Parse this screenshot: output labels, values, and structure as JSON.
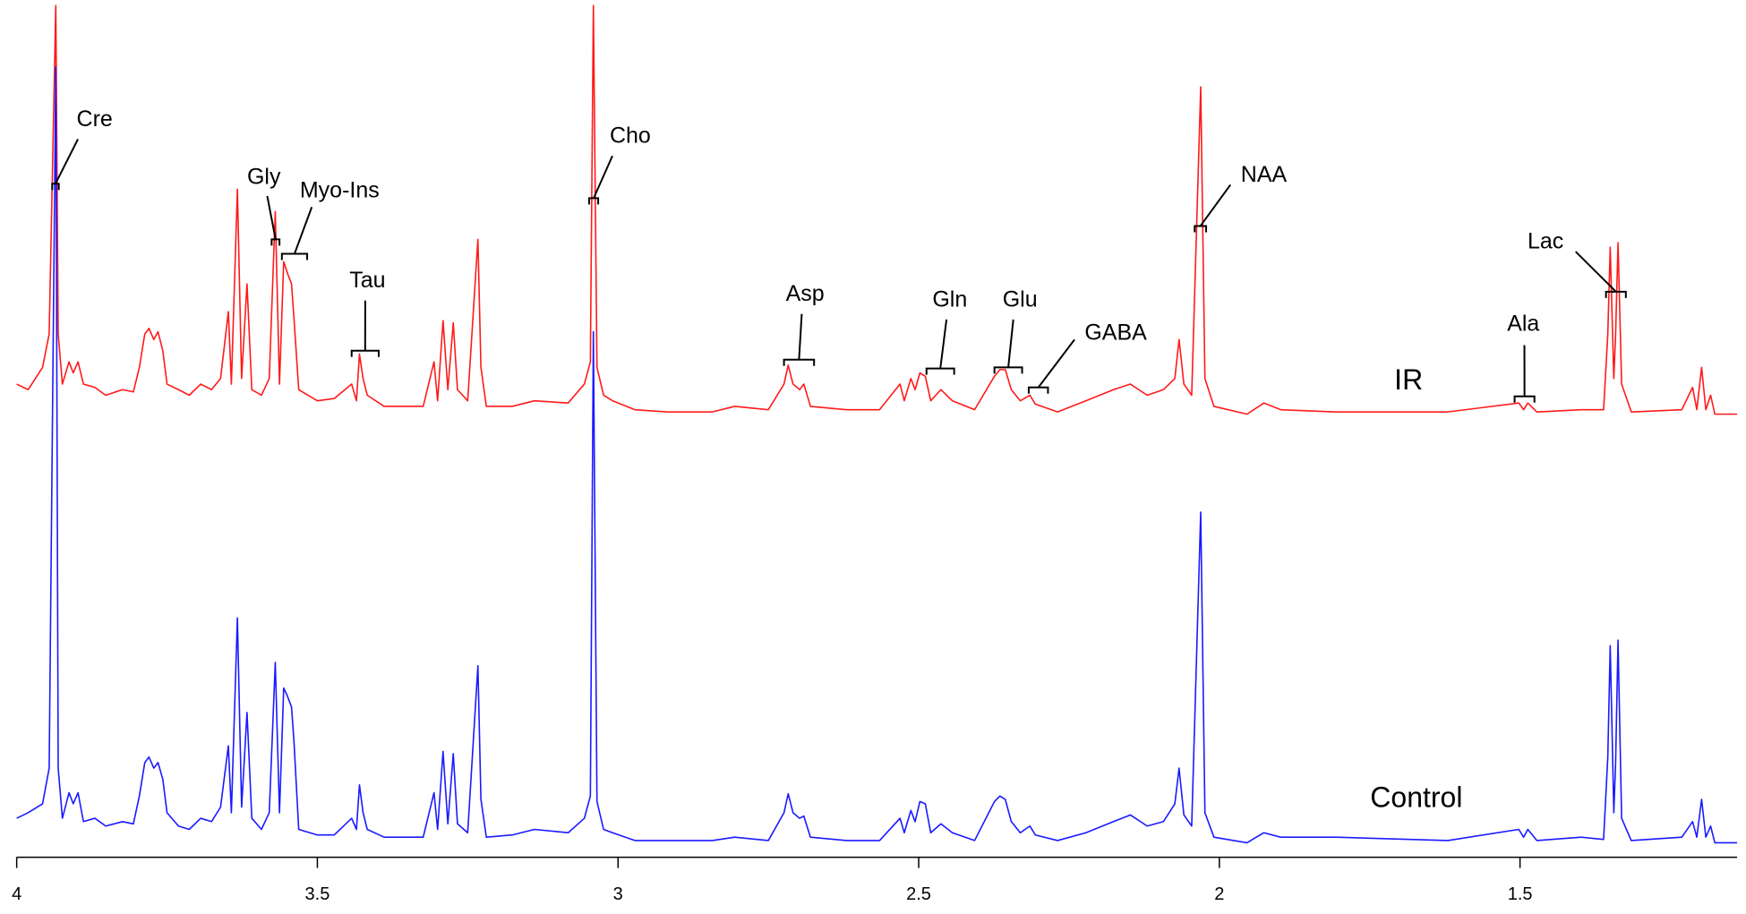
{
  "chart_data": {
    "type": "line",
    "xlim": [
      4.0,
      1.139
    ],
    "ylim": [
      0,
      77
    ],
    "xticks": [
      4,
      3.5,
      3,
      2.5,
      2,
      1.5
    ],
    "x": [
      4.0,
      3.981,
      3.957,
      3.946,
      3.935,
      3.931,
      3.924,
      3.913,
      3.906,
      3.898,
      3.889,
      3.87,
      3.852,
      3.824,
      3.806,
      3.796,
      3.787,
      3.78,
      3.772,
      3.765,
      3.757,
      3.75,
      3.731,
      3.713,
      3.694,
      3.676,
      3.661,
      3.648,
      3.643,
      3.633,
      3.626,
      3.617,
      3.609,
      3.593,
      3.58,
      3.57,
      3.563,
      3.556,
      3.55,
      3.543,
      3.539,
      3.531,
      3.5,
      3.472,
      3.443,
      3.435,
      3.43,
      3.424,
      3.417,
      3.389,
      3.324,
      3.306,
      3.3,
      3.291,
      3.283,
      3.274,
      3.267,
      3.25,
      3.233,
      3.228,
      3.219,
      3.176,
      3.139,
      3.083,
      3.056,
      3.046,
      3.041,
      3.035,
      3.024,
      3.009,
      2.972,
      2.917,
      2.843,
      2.806,
      2.75,
      2.724,
      2.717,
      2.709,
      2.698,
      2.691,
      2.68,
      2.62,
      2.565,
      2.531,
      2.524,
      2.513,
      2.506,
      2.498,
      2.489,
      2.48,
      2.463,
      2.444,
      2.407,
      2.374,
      2.365,
      2.356,
      2.346,
      2.331,
      2.315,
      2.306,
      2.269,
      2.222,
      2.176,
      2.148,
      2.12,
      2.093,
      2.074,
      2.067,
      2.059,
      2.046,
      2.031,
      2.024,
      2.009,
      1.954,
      1.926,
      1.898,
      1.806,
      1.62,
      1.502,
      1.494,
      1.487,
      1.472,
      1.398,
      1.361,
      1.354,
      1.35,
      1.344,
      1.341,
      1.337,
      1.331,
      1.315,
      1.231,
      1.213,
      1.206,
      1.198,
      1.191,
      1.183,
      1.176,
      1.139
    ],
    "series": [
      {
        "name": "IR",
        "color": "#ff1a1a",
        "values": [
          42.5,
          42.0,
          44.0,
          47.0,
          76.5,
          47.0,
          42.5,
          44.5,
          43.5,
          44.5,
          42.5,
          42.2,
          41.5,
          42.0,
          41.8,
          44.0,
          47.0,
          47.5,
          46.5,
          47.2,
          45.5,
          42.5,
          42.0,
          41.5,
          42.5,
          42.0,
          43.0,
          49.0,
          42.5,
          60.0,
          43.0,
          51.5,
          42.0,
          41.5,
          43.0,
          58.0,
          42.5,
          53.5,
          52.5,
          51.5,
          48.5,
          42.0,
          41.0,
          41.2,
          42.5,
          41.0,
          45.2,
          43.0,
          41.5,
          40.5,
          40.5,
          44.5,
          41.0,
          48.2,
          42.0,
          48.0,
          42.0,
          41.0,
          55.5,
          44.0,
          40.5,
          40.5,
          41.0,
          40.8,
          42.5,
          44.5,
          76.5,
          44.0,
          41.5,
          41.0,
          40.2,
          40.0,
          40.0,
          40.5,
          40.2,
          42.5,
          44.2,
          42.5,
          42.0,
          42.5,
          40.5,
          40.2,
          40.2,
          42.5,
          41.0,
          43.0,
          42.0,
          43.5,
          43.2,
          41.0,
          42.0,
          41.0,
          40.2,
          43.2,
          43.8,
          43.8,
          42.0,
          41.0,
          41.5,
          40.7,
          40.0,
          41.0,
          42.0,
          42.5,
          41.5,
          42.0,
          43.0,
          46.5,
          42.5,
          41.5,
          69.2,
          43.0,
          40.5,
          39.8,
          40.8,
          40.2,
          40.0,
          40.0,
          40.8,
          40.2,
          40.8,
          40.0,
          40.2,
          40.2,
          47.0,
          54.8,
          43.0,
          47.0,
          55.2,
          42.5,
          40.0,
          40.2,
          42.2,
          40.2,
          44.0,
          40.2,
          41.5,
          39.8,
          39.8
        ]
      },
      {
        "name": "Control",
        "color": "#1a1aff",
        "values": [
          3.5,
          4.0,
          4.8,
          8.0,
          71.0,
          8.0,
          3.5,
          5.8,
          4.8,
          5.8,
          3.2,
          3.5,
          2.8,
          3.2,
          3.0,
          5.5,
          8.5,
          9.0,
          8.0,
          8.5,
          7.0,
          4.0,
          2.8,
          2.5,
          3.5,
          3.2,
          4.5,
          10.0,
          4.0,
          21.5,
          4.5,
          13.0,
          3.5,
          2.5,
          4.0,
          17.5,
          4.0,
          15.2,
          14.5,
          13.5,
          10.5,
          2.5,
          2.0,
          2.0,
          3.5,
          2.5,
          6.5,
          4.0,
          2.5,
          1.8,
          1.8,
          5.8,
          2.5,
          9.5,
          3.0,
          9.3,
          3.0,
          2.2,
          17.2,
          5.2,
          1.8,
          2.0,
          2.5,
          2.2,
          3.5,
          5.5,
          47.2,
          5.0,
          2.5,
          2.2,
          1.5,
          1.5,
          1.5,
          1.8,
          1.5,
          4.0,
          5.7,
          4.0,
          3.5,
          3.7,
          1.8,
          1.5,
          1.5,
          3.5,
          2.2,
          4.2,
          3.2,
          5.0,
          4.8,
          2.2,
          3.0,
          2.2,
          1.5,
          5.0,
          5.5,
          5.2,
          3.2,
          2.2,
          2.8,
          2.0,
          1.5,
          2.2,
          3.2,
          3.8,
          2.8,
          3.2,
          4.8,
          8.0,
          3.8,
          2.8,
          31.0,
          4.0,
          1.8,
          1.3,
          2.2,
          1.8,
          1.8,
          1.5,
          2.5,
          1.8,
          2.5,
          1.5,
          1.8,
          1.6,
          9.0,
          19.0,
          4.0,
          8.5,
          19.5,
          3.5,
          1.5,
          1.8,
          3.2,
          1.8,
          5.2,
          1.8,
          2.8,
          1.3,
          1.3
        ]
      }
    ],
    "annotations": [
      {
        "text": "Cre",
        "x": [
          3.941,
          3.93
        ]
      },
      {
        "text": "Gly",
        "x": [
          3.576,
          3.563
        ]
      },
      {
        "text": "Myo-Ins",
        "x": [
          3.559,
          3.517
        ]
      },
      {
        "text": "Tau",
        "x": [
          3.443,
          3.398
        ]
      },
      {
        "text": "Cho",
        "x": [
          3.048,
          3.033
        ]
      },
      {
        "text": "Asp",
        "x": [
          2.724,
          2.674
        ]
      },
      {
        "text": "Gln",
        "x": [
          2.487,
          2.441
        ]
      },
      {
        "text": "Glu",
        "x": [
          2.374,
          2.328
        ]
      },
      {
        "text": "GABA",
        "x": [
          2.317,
          2.285
        ]
      },
      {
        "text": "NAA",
        "x": [
          2.041,
          2.022
        ]
      },
      {
        "text": "Ala",
        "x": [
          1.509,
          1.476
        ]
      },
      {
        "text": "Lac",
        "x": [
          1.357,
          1.324
        ]
      }
    ]
  }
}
